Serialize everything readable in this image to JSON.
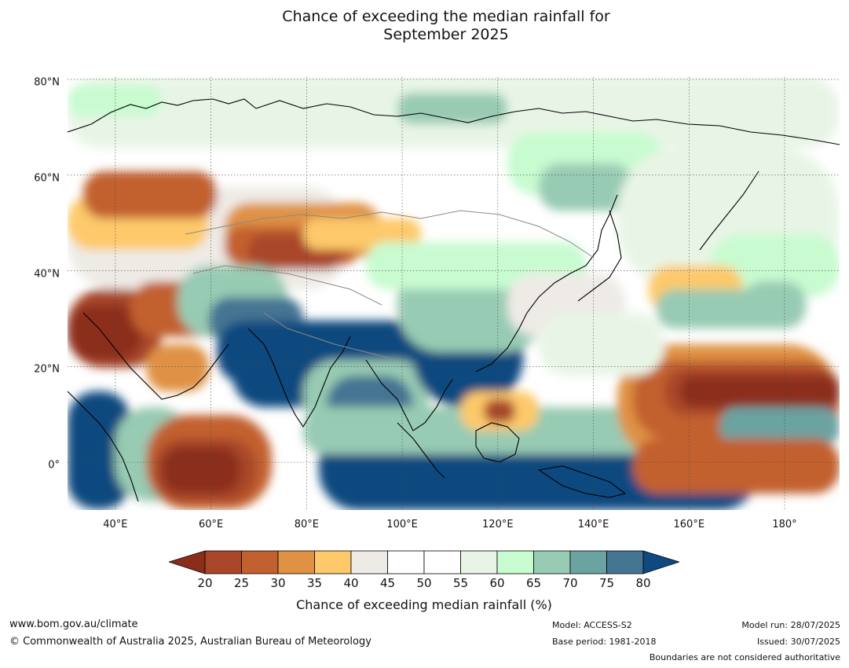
{
  "title_line1": "Chance of exceeding the median rainfall for",
  "title_line2": "September 2025",
  "latitude_labels": [
    {
      "label": "80°N",
      "lat": 80
    },
    {
      "label": "60°N",
      "lat": 60
    },
    {
      "label": "40°N",
      "lat": 40
    },
    {
      "label": "20°N",
      "lat": 20
    },
    {
      "label": "0°",
      "lat": 0
    }
  ],
  "longitude_labels": [
    {
      "label": "40°E",
      "lon": 40
    },
    {
      "label": "60°E",
      "lon": 60
    },
    {
      "label": "80°E",
      "lon": 80
    },
    {
      "label": "100°E",
      "lon": 100
    },
    {
      "label": "120°E",
      "lon": 120
    },
    {
      "label": "140°E",
      "lon": 140
    },
    {
      "label": "160°E",
      "lon": 160
    },
    {
      "label": "180°",
      "lon": 180
    }
  ],
  "map_extent": {
    "lon_min": 30,
    "lon_max": 191.5,
    "lat_min": -10,
    "lat_max": 80.5
  },
  "colorbar": {
    "ticks": [
      "20",
      "25",
      "30",
      "35",
      "40",
      "45",
      "50",
      "55",
      "60",
      "65",
      "70",
      "75",
      "80"
    ],
    "low_extend_color": "#8c2d1c",
    "high_extend_color": "#10497f",
    "colors": [
      "#a9462a",
      "#c2602f",
      "#df9244",
      "#fdc96a",
      "#eeebe6",
      "#ffffff",
      "#ffffff",
      "#e8f5e6",
      "#c8fbd0",
      "#98cbb3",
      "#6aa3a0",
      "#447593"
    ],
    "label": "Chance of exceeding median rainfall (%)"
  },
  "footer": {
    "url": "www.bom.gov.au/climate",
    "copyright": "© Commonwealth of Australia 2025, Australian Bureau of Meteorology",
    "model": "Model: ACCESS-S2",
    "base_period": "Base period: 1981-2018",
    "model_run": "Model run: 28/07/2025",
    "issued": "Issued: 30/07/2025",
    "disclaimer": "Boundaries are not considered authoritative"
  }
}
